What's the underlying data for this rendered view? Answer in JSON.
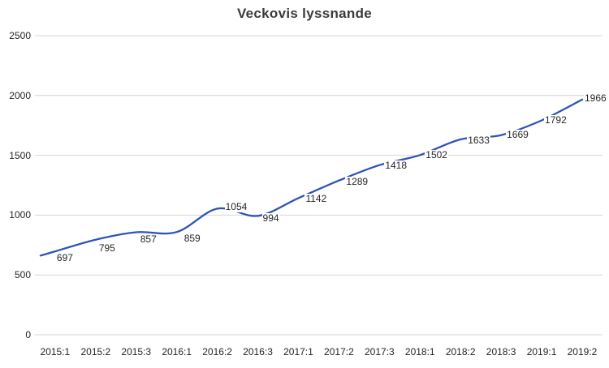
{
  "title": "Veckovis lyssnande",
  "chart_data": {
    "type": "line",
    "title": "Veckovis lyssnande",
    "categories": [
      "2015:1",
      "2015:2",
      "2015:3",
      "2016:1",
      "2016:2",
      "2016:3",
      "2017:1",
      "2017:2",
      "2017:3",
      "2018:1",
      "2018:2",
      "2018:3",
      "2019:1",
      "2019:2"
    ],
    "values": [
      697,
      795,
      857,
      859,
      1054,
      994,
      1142,
      1289,
      1418,
      1502,
      1633,
      1669,
      1792,
      1966
    ],
    "data_labels": [
      "697",
      "795",
      "857",
      "859",
      "1054",
      "994",
      "1142",
      "1289",
      "1418",
      "1502",
      "1633",
      "1669",
      "1792",
      "1966"
    ],
    "yticks": [
      "0",
      "500",
      "1000",
      "1500",
      "2000",
      "2500"
    ],
    "ylim": [
      0,
      2500
    ],
    "ytick_interval": 500,
    "xlabel": "",
    "ylabel": "",
    "grid": "horizontal",
    "legend": "none",
    "smooth_line": true,
    "markers": false,
    "colors": {
      "line": "#2D55B4",
      "grid": "#D6D6D6",
      "tick_text": "#262626",
      "title_text": "#3B3B3B",
      "background": "#FFFFFF"
    }
  }
}
